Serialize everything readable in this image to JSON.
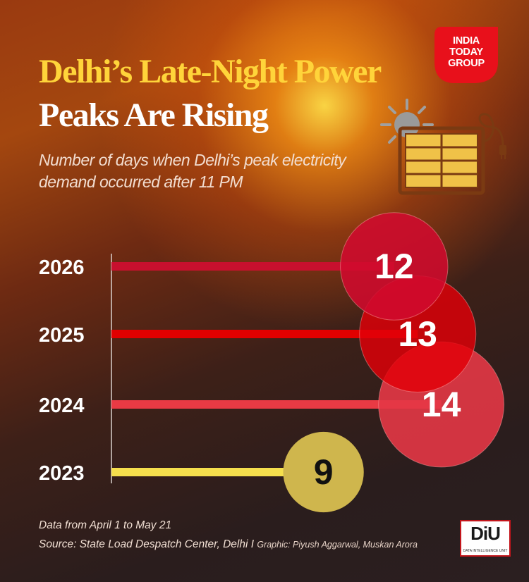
{
  "header": {
    "title_line1": "Delhi’s Late-Night Power",
    "title_line2": "Peaks Are Rising",
    "subtitle": "Number of days when Delhi’s peak electricity demand occurred after 11 PM"
  },
  "logo": {
    "line1": "INDIA",
    "line2": "TODAY",
    "line3": "GROUP",
    "color": "#e8101b"
  },
  "illustration": {
    "icon": "sun-solar-panel-icon"
  },
  "chart_data": {
    "type": "bar",
    "categories": [
      "2026",
      "2025",
      "2024",
      "2023"
    ],
    "values": [
      12,
      13,
      14,
      9
    ],
    "title": "",
    "xlabel": "",
    "ylabel": "",
    "xlim": [
      0,
      14
    ],
    "grid": false,
    "colors": [
      "#c8102e",
      "#e10000",
      "#e83a44",
      "#f5df4d"
    ],
    "bubble_colors": [
      "rgba(208,10,45,0.88)",
      "rgba(226,0,8,0.82)",
      "rgba(228,55,70,0.9)",
      "#cfb64d"
    ],
    "label_colors": [
      "#ffffff",
      "#ffffff",
      "#ffffff",
      "#111111"
    ]
  },
  "footer": {
    "note": "Data from April 1 to May 21",
    "source": "Source: State Load Despatch Center, Delhi",
    "separator": "I",
    "credit": "Graphic: Piyush Aggarwal, Muskan Arora"
  },
  "diu_badge": {
    "mark": "DiU",
    "subtitle": "DATA INTELLIGENCE UNIT"
  }
}
